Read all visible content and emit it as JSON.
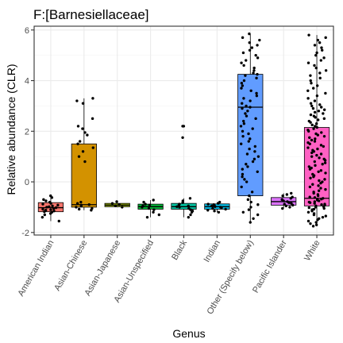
{
  "chart_data": {
    "type": "box",
    "title": "F:[Barnesiellaceae]",
    "xlabel": "Genus",
    "ylabel": "Relative abundance (CLR)",
    "ylim": [
      -2.1,
      6.15
    ],
    "yticks": [
      -2,
      0,
      2,
      4,
      6
    ],
    "grid": true,
    "legend": "none",
    "categories": [
      "American Indian",
      "Asian-Chinese",
      "Asian-Japanese",
      "Asian-Unspecified",
      "Black",
      "Indian",
      "Other (Specify below)",
      "Pacific Islander",
      "White"
    ],
    "boxes": [
      {
        "category": "American Indian",
        "color": "#F8766D",
        "q1": -1.18,
        "median": -1.02,
        "q3": -0.82,
        "whisker_low": -1.55,
        "whisker_high": -0.55,
        "points": [
          -0.55,
          -0.62,
          -0.7,
          -0.75,
          -0.8,
          -0.85,
          -0.88,
          -0.92,
          -0.95,
          -0.98,
          -1.0,
          -1.02,
          -1.05,
          -1.08,
          -1.1,
          -1.12,
          -1.15,
          -1.18,
          -1.2,
          -1.25,
          -1.3,
          -1.4,
          -1.55
        ]
      },
      {
        "category": "Asian-Chinese",
        "color": "#D39200",
        "q1": -1.0,
        "median": -0.9,
        "q3": 1.5,
        "whisker_low": -1.12,
        "whisker_high": 3.3,
        "points": [
          3.3,
          3.2,
          3.1,
          2.5,
          2.2,
          2.1,
          1.95,
          1.85,
          1.6,
          1.5,
          1.35,
          1.2,
          1.0,
          0.8,
          -0.8,
          -0.85,
          -0.9,
          -0.92,
          -0.95,
          -1.0,
          -1.05,
          -1.08,
          -1.12
        ]
      },
      {
        "category": "Asian-Japanese",
        "color": "#93AA00",
        "q1": -0.98,
        "median": -0.92,
        "q3": -0.85,
        "whisker_low": -1.0,
        "whisker_high": -0.78,
        "points": [
          -0.78,
          -0.85,
          -0.9,
          -0.95,
          -1.0
        ]
      },
      {
        "category": "Asian-Unspecified",
        "color": "#00BA38",
        "q1": -1.08,
        "median": -0.98,
        "q3": -0.88,
        "whisker_low": -1.4,
        "whisker_high": -0.72,
        "points": [
          -0.72,
          -0.8,
          -0.88,
          -0.92,
          -0.95,
          -1.0,
          -1.05,
          -1.1,
          -1.2,
          -1.3,
          -1.4
        ]
      },
      {
        "category": "Black",
        "color": "#00C19F",
        "q1": -1.08,
        "median": -0.98,
        "q3": -0.85,
        "whisker_low": -1.4,
        "whisker_high": -0.65,
        "points": [
          2.2,
          2.2,
          1.75,
          -0.65,
          -0.75,
          -0.82,
          -0.88,
          -0.92,
          -0.95,
          -0.98,
          -1.0,
          -1.05,
          -1.1,
          -1.15,
          -1.2,
          -1.3,
          -1.4
        ]
      },
      {
        "category": "Indian",
        "color": "#00B9E3",
        "q1": -1.08,
        "median": -0.98,
        "q3": -0.87,
        "whisker_low": -1.2,
        "whisker_high": -0.8,
        "points": [
          -0.8,
          -0.85,
          -0.88,
          -0.9,
          -0.93,
          -0.95,
          -0.98,
          -1.0,
          -1.02,
          -1.05,
          -1.08,
          -1.12,
          -1.15,
          -1.2
        ]
      },
      {
        "category": "Other (Specify below)",
        "color": "#619CFF",
        "q1": -0.55,
        "median": 2.95,
        "q3": 4.25,
        "whisker_low": -1.6,
        "whisker_high": 5.85,
        "points": [
          5.85,
          5.7,
          5.6,
          5.5,
          5.4,
          5.3,
          5.2,
          5.1,
          5.0,
          4.9,
          4.8,
          4.7,
          4.6,
          4.5,
          4.4,
          4.3,
          4.25,
          4.2,
          4.1,
          4.0,
          3.9,
          3.8,
          3.7,
          3.6,
          3.5,
          3.4,
          3.3,
          3.2,
          3.1,
          3.0,
          2.95,
          2.9,
          2.8,
          2.7,
          2.6,
          2.5,
          2.4,
          2.3,
          2.2,
          2.1,
          2.0,
          1.9,
          1.8,
          1.7,
          1.6,
          1.5,
          1.4,
          1.3,
          1.2,
          1.1,
          1.0,
          0.9,
          0.8,
          0.7,
          0.6,
          0.5,
          0.4,
          0.3,
          0.2,
          0.1,
          0.0,
          -0.2,
          -0.4,
          -0.55,
          -0.7,
          -0.8,
          -0.9,
          -1.0,
          -1.1,
          -1.2,
          -1.3,
          -1.45,
          -1.6
        ]
      },
      {
        "category": "Pacific Islander",
        "color": "#DB72FB",
        "q1": -0.92,
        "median": -0.78,
        "q3": -0.62,
        "whisker_low": -1.05,
        "whisker_high": -0.45,
        "points": [
          -0.45,
          -0.5,
          -0.55,
          -0.6,
          -0.65,
          -0.7,
          -0.75,
          -0.78,
          -0.82,
          -0.85,
          -0.88,
          -0.92,
          -0.95,
          -1.0,
          -1.05
        ]
      },
      {
        "category": "White",
        "color": "#FF61C3",
        "q1": -0.95,
        "median": -0.65,
        "q3": 2.15,
        "whisker_low": -1.75,
        "whisker_high": 5.8,
        "points": [
          5.8,
          5.7,
          5.6,
          5.5,
          5.4,
          5.3,
          5.2,
          5.1,
          5.0,
          4.9,
          4.8,
          4.7,
          4.6,
          4.5,
          4.4,
          4.3,
          4.2,
          4.1,
          4.0,
          3.9,
          3.8,
          3.7,
          3.6,
          3.5,
          3.4,
          3.3,
          3.2,
          3.1,
          3.05,
          3.0,
          2.95,
          2.9,
          2.85,
          2.8,
          2.75,
          2.7,
          2.65,
          2.6,
          2.55,
          2.5,
          2.45,
          2.4,
          2.35,
          2.3,
          2.25,
          2.2,
          2.15,
          2.1,
          2.05,
          2.0,
          1.95,
          1.9,
          1.85,
          1.8,
          1.75,
          1.7,
          1.65,
          1.6,
          1.55,
          1.5,
          1.45,
          1.4,
          1.35,
          1.3,
          1.25,
          1.2,
          1.15,
          1.1,
          1.05,
          1.0,
          0.95,
          0.9,
          0.85,
          0.8,
          0.75,
          0.7,
          0.65,
          0.6,
          0.55,
          0.5,
          0.45,
          0.4,
          0.35,
          0.3,
          0.25,
          0.2,
          0.15,
          0.1,
          0.05,
          0.0,
          -0.05,
          -0.1,
          -0.15,
          -0.2,
          -0.25,
          -0.3,
          -0.35,
          -0.4,
          -0.45,
          -0.5,
          -0.55,
          -0.6,
          -0.62,
          -0.65,
          -0.68,
          -0.7,
          -0.72,
          -0.75,
          -0.78,
          -0.8,
          -0.82,
          -0.85,
          -0.88,
          -0.9,
          -0.92,
          -0.95,
          -0.98,
          -1.0,
          -1.02,
          -1.05,
          -1.08,
          -1.1,
          -1.15,
          -1.2,
          -1.25,
          -1.3,
          -1.35,
          -1.4,
          -1.45,
          -1.5,
          -1.55,
          -1.6,
          -1.65,
          -1.7,
          -1.75
        ]
      }
    ]
  }
}
